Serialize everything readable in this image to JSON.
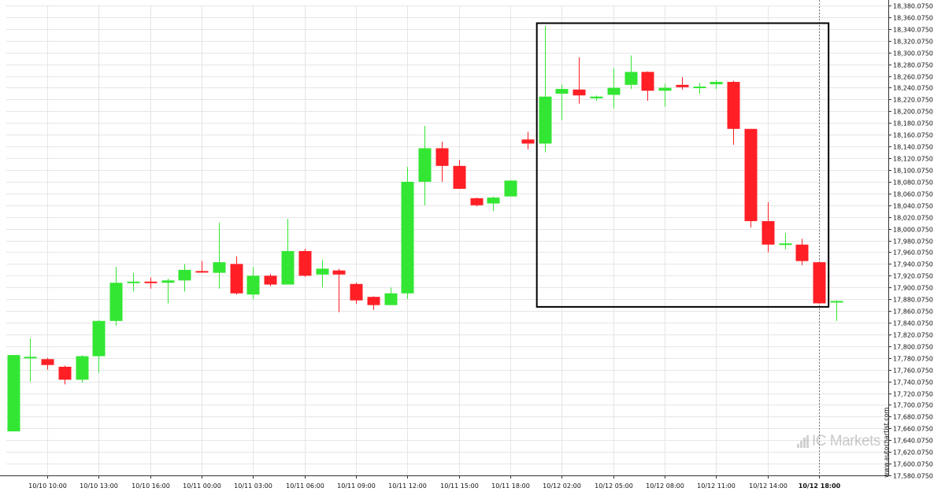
{
  "chart_data": {
    "type": "candlestick",
    "title": "",
    "xlabel": "",
    "ylabel": "",
    "ylim": [
      17580.075,
      18380.075
    ],
    "y_ticks": [
      "17,580.0750",
      "17,600.0750",
      "17,620.0750",
      "17,640.0750",
      "17,660.0750",
      "17,680.0750",
      "17,700.0750",
      "17,720.0750",
      "17,740.0750",
      "17,760.0750",
      "17,780.0750",
      "17,800.0750",
      "17,820.0750",
      "17,840.0750",
      "17,860.0750",
      "17,880.0750",
      "17,900.0750",
      "17,920.0750",
      "17,940.0750",
      "17,960.0750",
      "17,980.0750",
      "18,000.0750",
      "18,020.0750",
      "18,040.0750",
      "18,060.0750",
      "18,080.0750",
      "18,100.0750",
      "18,120.0750",
      "18,140.0750",
      "18,160.0750",
      "18,180.0750",
      "18,200.0750",
      "18,220.0750",
      "18,240.0750",
      "18,260.0750",
      "18,280.0750",
      "18,300.0750",
      "18,320.0750",
      "18,340.0750",
      "18,360.0750",
      "18,380.0750"
    ],
    "x_ticks": [
      {
        "label": "10/10 10:00",
        "index": 2
      },
      {
        "label": "10/10 13:00",
        "index": 5
      },
      {
        "label": "10/10 16:00",
        "index": 8
      },
      {
        "label": "10/11 00:00",
        "index": 11
      },
      {
        "label": "10/11 03:00",
        "index": 14
      },
      {
        "label": "10/11 06:00",
        "index": 17
      },
      {
        "label": "10/11 09:00",
        "index": 20
      },
      {
        "label": "10/11 12:00",
        "index": 23
      },
      {
        "label": "10/11 15:00",
        "index": 26
      },
      {
        "label": "10/11 18:00",
        "index": 29
      },
      {
        "label": "10/12 02:00",
        "index": 32
      },
      {
        "label": "10/12 05:00",
        "index": 35
      },
      {
        "label": "10/12 08:00",
        "index": 38
      },
      {
        "label": "10/12 11:00",
        "index": 41
      },
      {
        "label": "10/12 14:00",
        "index": 44
      },
      {
        "label": "10/12 18:00",
        "index": 47,
        "bold": true
      }
    ],
    "candles": [
      {
        "open": 17655,
        "high": 17785,
        "low": 17655,
        "close": 17785
      },
      {
        "open": 17782,
        "high": 17813,
        "low": 17740,
        "close": 17782
      },
      {
        "open": 17778,
        "high": 17780,
        "low": 17760,
        "close": 17768
      },
      {
        "open": 17765,
        "high": 17767,
        "low": 17735,
        "close": 17743
      },
      {
        "open": 17743,
        "high": 17785,
        "low": 17738,
        "close": 17783
      },
      {
        "open": 17783,
        "high": 17845,
        "low": 17755,
        "close": 17843
      },
      {
        "open": 17843,
        "high": 17935,
        "low": 17835,
        "close": 17908
      },
      {
        "open": 17908,
        "high": 17925,
        "low": 17893,
        "close": 17910
      },
      {
        "open": 17910,
        "high": 17917,
        "low": 17898,
        "close": 17908
      },
      {
        "open": 17908,
        "high": 17915,
        "low": 17873,
        "close": 17912
      },
      {
        "open": 17912,
        "high": 17940,
        "low": 17893,
        "close": 17930
      },
      {
        "open": 17928,
        "high": 17945,
        "low": 17925,
        "close": 17927
      },
      {
        "open": 17925,
        "high": 18010,
        "low": 17898,
        "close": 17943
      },
      {
        "open": 17940,
        "high": 17953,
        "low": 17888,
        "close": 17890
      },
      {
        "open": 17888,
        "high": 17935,
        "low": 17880,
        "close": 17920
      },
      {
        "open": 17920,
        "high": 17923,
        "low": 17902,
        "close": 17905
      },
      {
        "open": 17905,
        "high": 18017,
        "low": 17905,
        "close": 17962
      },
      {
        "open": 17962,
        "high": 17966,
        "low": 17918,
        "close": 17920
      },
      {
        "open": 17922,
        "high": 17947,
        "low": 17900,
        "close": 17932
      },
      {
        "open": 17929,
        "high": 17932,
        "low": 17858,
        "close": 17922
      },
      {
        "open": 17906,
        "high": 17908,
        "low": 17872,
        "close": 17878
      },
      {
        "open": 17884,
        "high": 17885,
        "low": 17862,
        "close": 17870
      },
      {
        "open": 17870,
        "high": 17900,
        "low": 17870,
        "close": 17890
      },
      {
        "open": 17890,
        "high": 18105,
        "low": 17880,
        "close": 18080
      },
      {
        "open": 18080,
        "high": 18175,
        "low": 18040,
        "close": 18137
      },
      {
        "open": 18137,
        "high": 18148,
        "low": 18080,
        "close": 18107
      },
      {
        "open": 18107,
        "high": 18117,
        "low": 18068,
        "close": 18068
      },
      {
        "open": 18052,
        "high": 18053,
        "low": 18038,
        "close": 18040
      },
      {
        "open": 18043,
        "high": 18055,
        "low": 18030,
        "close": 18053
      },
      {
        "open": 18055,
        "high": 18083,
        "low": 18055,
        "close": 18082
      },
      {
        "open": 18152,
        "high": 18165,
        "low": 18135,
        "close": 18145
      },
      {
        "open": 18145,
        "high": 18345,
        "low": 18130,
        "close": 18225
      },
      {
        "open": 18230,
        "high": 18245,
        "low": 18185,
        "close": 18238
      },
      {
        "open": 18237,
        "high": 18292,
        "low": 18213,
        "close": 18227
      },
      {
        "open": 18222,
        "high": 18227,
        "low": 18218,
        "close": 18225
      },
      {
        "open": 18228,
        "high": 18273,
        "low": 18205,
        "close": 18240
      },
      {
        "open": 18245,
        "high": 18295,
        "low": 18238,
        "close": 18267
      },
      {
        "open": 18267,
        "high": 18268,
        "low": 18218,
        "close": 18235
      },
      {
        "open": 18235,
        "high": 18247,
        "low": 18208,
        "close": 18240
      },
      {
        "open": 18245,
        "high": 18258,
        "low": 18237,
        "close": 18241
      },
      {
        "open": 18241,
        "high": 18248,
        "low": 18230,
        "close": 18242
      },
      {
        "open": 18246,
        "high": 18253,
        "low": 18238,
        "close": 18250
      },
      {
        "open": 18250,
        "high": 18252,
        "low": 18143,
        "close": 18170
      },
      {
        "open": 18170,
        "high": 18170,
        "low": 18002,
        "close": 18013
      },
      {
        "open": 18013,
        "high": 18045,
        "low": 17960,
        "close": 17973
      },
      {
        "open": 17975,
        "high": 17993,
        "low": 17965,
        "close": 17975
      },
      {
        "open": 17973,
        "high": 17983,
        "low": 17938,
        "close": 17945
      },
      {
        "open": 17943,
        "high": 17943,
        "low": 17873,
        "close": 17873
      },
      {
        "open": 17875,
        "high": 17878,
        "low": 17843,
        "close": 17877
      }
    ],
    "highlight_box": {
      "from_index": 31,
      "to_index": 47,
      "top": 18350,
      "bottom": 17867
    },
    "current_time_index": 47,
    "colors": {
      "up": "#33e633",
      "down": "#ff1f25",
      "grid": "#e6e6e6",
      "box": "#000000"
    },
    "grid": true,
    "watermark": {
      "brand": "ICMarkets",
      "text": "IC Markets"
    },
    "site_label": "www.autochartist.com"
  }
}
